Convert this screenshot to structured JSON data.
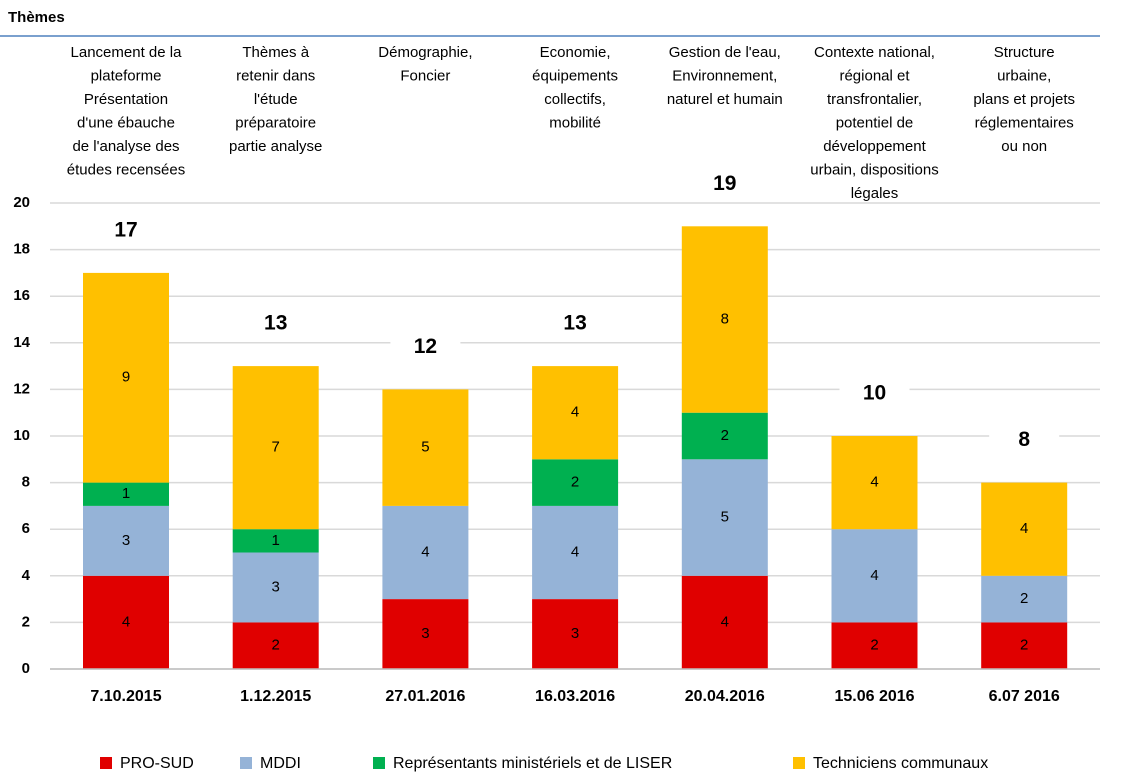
{
  "chart_data": {
    "type": "bar",
    "stacked": true,
    "header": "Thèmes",
    "categories": [
      "7.10.2015",
      "1.12.2015",
      "27.01.2016",
      "16.03.2016",
      "20.04.2016",
      "15.06 2016",
      "6.07 2016"
    ],
    "themes": [
      [
        "Lancement de la",
        "plateforme",
        "Présentation",
        "d'une ébauche",
        "de l'analyse des",
        "études recensées"
      ],
      [
        "Thèmes à",
        "retenir dans",
        "l'étude",
        "préparatoire",
        "partie analyse"
      ],
      [
        "Démographie,",
        "Foncier"
      ],
      [
        "Economie,",
        "équipements",
        "collectifs,",
        "mobilité"
      ],
      [
        "Gestion de l'eau,",
        "Environnement,",
        "naturel et humain"
      ],
      [
        "Contexte national,",
        "régional et",
        "transfrontalier,",
        "potentiel de",
        "développement",
        "urbain, dispositions",
        "légales"
      ],
      [
        "Structure",
        "urbaine,",
        "plans et projets",
        "réglementaires",
        "ou non"
      ]
    ],
    "series": [
      {
        "name": "PRO-SUD",
        "color": "#e00000",
        "values": [
          4,
          2,
          3,
          3,
          4,
          2,
          2
        ]
      },
      {
        "name": "MDDI",
        "color": "#95b3d7",
        "values": [
          3,
          3,
          4,
          4,
          5,
          4,
          2
        ]
      },
      {
        "name": "Représentants ministériels et de LISER",
        "color": "#00b050",
        "values": [
          1,
          1,
          null,
          2,
          2,
          null,
          null
        ]
      },
      {
        "name": "Techniciens communaux",
        "color": "#ffc000",
        "values": [
          9,
          7,
          5,
          4,
          8,
          4,
          4
        ]
      }
    ],
    "totals": [
      17,
      13,
      12,
      13,
      19,
      10,
      8
    ],
    "ylim": [
      0,
      20
    ],
    "yticks": [
      0,
      2,
      4,
      6,
      8,
      10,
      12,
      14,
      16,
      18,
      20
    ],
    "grid": true,
    "legend": "bottom"
  }
}
